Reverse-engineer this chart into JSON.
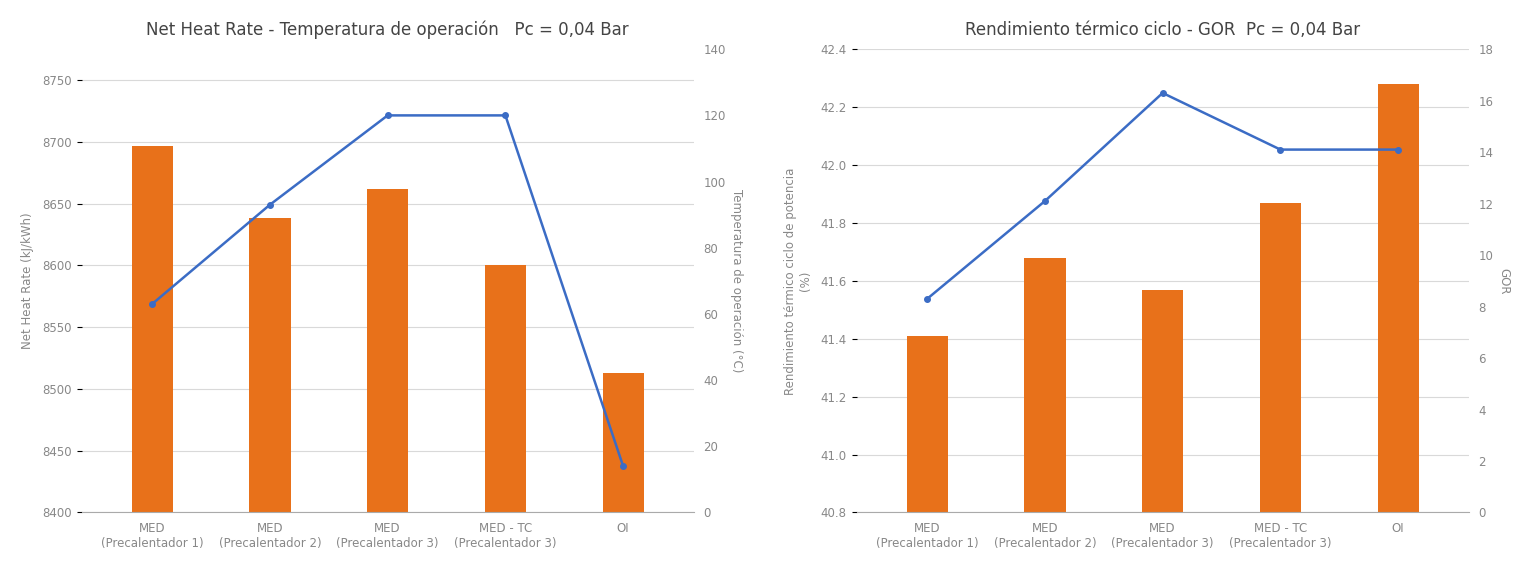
{
  "chart1": {
    "title": "Net Heat Rate - Temperatura de operación   Pc = 0,04 Bar",
    "categories": [
      "MED\n(Precalentador 1)",
      "MED\n(Precalentador 2)",
      "MED\n(Precalentador 3)",
      "MED - TC\n(Precalentador 3)",
      "OI"
    ],
    "bar_values": [
      8697,
      8638,
      8662,
      8600,
      8513
    ],
    "line_values": [
      63,
      93,
      120,
      120,
      14
    ],
    "ylabel_left": "Net Heat Rate (kJ/kWh)",
    "ylabel_right": "Temperatura de operación (°C)",
    "ylim_left": [
      8400,
      8775
    ],
    "ylim_right": [
      0,
      140
    ],
    "yticks_left": [
      8400,
      8450,
      8500,
      8550,
      8600,
      8650,
      8700,
      8750
    ],
    "yticks_right": [
      0,
      20,
      40,
      60,
      80,
      100,
      120,
      140
    ],
    "bar_color": "#E8711A",
    "line_color": "#3B6CC5"
  },
  "chart2": {
    "title": "Rendimiento térmico ciclo - GOR  Pc = 0,04 Bar",
    "categories": [
      "MED\n(Precalentador 1)",
      "MED\n(Precalentador 2)",
      "MED\n(Precalentador 3)",
      "MED - TC\n(Precalentador 3)",
      "OI"
    ],
    "bar_values": [
      41.41,
      41.68,
      41.57,
      41.87,
      42.28
    ],
    "line_values": [
      8.3,
      12.1,
      16.3,
      14.1,
      14.1
    ],
    "ylabel_left": "Rendimiento térmico ciclo de potencia\n(%)",
    "ylabel_right": "GOR",
    "ylim_left": [
      40.8,
      42.4
    ],
    "ylim_right": [
      0,
      18
    ],
    "yticks_left": [
      40.8,
      41.0,
      41.2,
      41.4,
      41.6,
      41.8,
      42.0,
      42.2,
      42.4
    ],
    "yticks_right": [
      0,
      2,
      4,
      6,
      8,
      10,
      12,
      14,
      16,
      18
    ],
    "bar_color": "#E8711A",
    "line_color": "#3B6CC5"
  },
  "background_color": "#FFFFFF",
  "grid_color": "#D9D9D9",
  "title_fontsize": 12,
  "label_fontsize": 8.5,
  "tick_fontsize": 8.5
}
